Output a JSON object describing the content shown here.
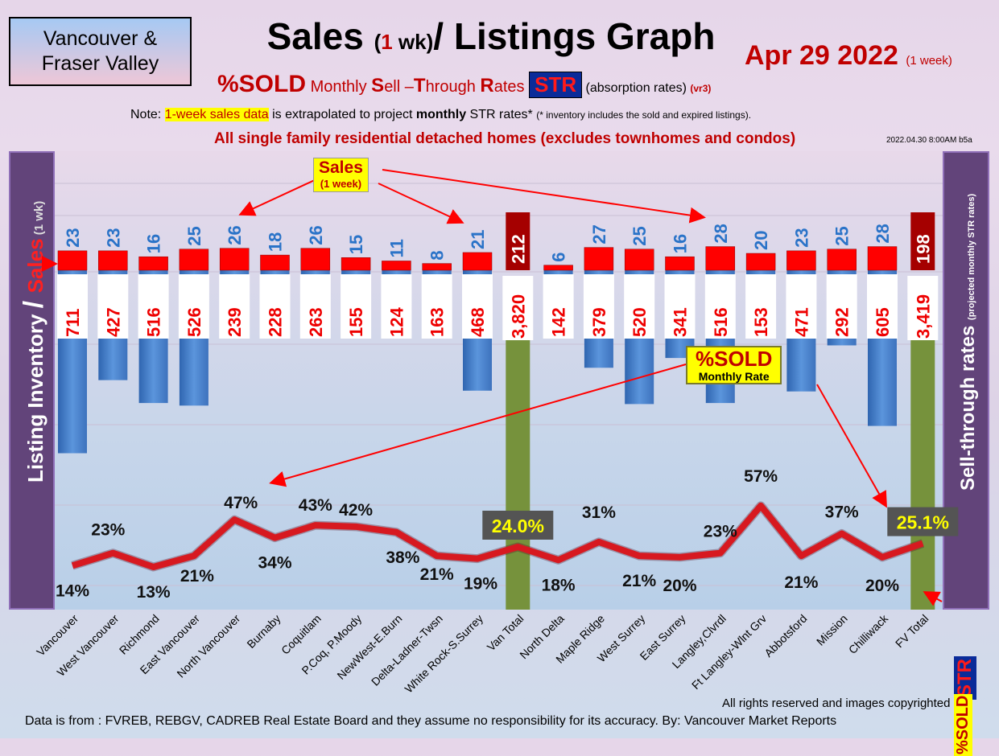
{
  "header": {
    "region_line1": "Vancouver &",
    "region_line2": "Fraser Valley",
    "title_a": "Sales ",
    "title_paren_open": "(",
    "title_one": "1",
    "title_paren_rest": " wk)",
    "title_b": "/ Listings Graph",
    "date": "Apr 29  2022",
    "date_note": "(1 week)",
    "sub_sold": "%SOLD",
    "sub_m1": " Monthly ",
    "sub_S": "S",
    "sub_ell": "ell –",
    "sub_T": "T",
    "sub_hrough": "hrough ",
    "sub_R": "R",
    "sub_ates": "ates ",
    "sub_str": "STR",
    "sub_abs": " (absorption rates) ",
    "sub_ver": "(vr3)",
    "note_pre": "Note: ",
    "note_hl": "1-week sales data",
    "note_mid": " is extrapolated to project ",
    "note_monthly": "monthly",
    "note_post": " STR rates* ",
    "note_tiny": "(* inventory includes the sold and expired listings).",
    "detached": "All single family residential detached homes (excludes townhomes and condos)",
    "stamp": "2022.04.30 8:00AM b5a"
  },
  "side": {
    "left_a": "Listing Inventory ",
    "left_slash": "/ ",
    "left_sales": "Sales",
    "left_wk": " (1 wk)",
    "right_main": "Sell-through rates ",
    "right_sub": "(projected monthly STR rates)",
    "right_str": "STR",
    "right_sold": "%SOLD"
  },
  "callouts": {
    "sales_l1": "Sales",
    "sales_l2": "(1 week)",
    "sold_l1": "%SOLD",
    "sold_l2": "Monthly Rate"
  },
  "footer": {
    "rights": "All rights reserved and  images copyrighted",
    "source": "Data is from : FVREB, REBGV, CADREB Real Estate Board and they assume no responsibility for its accuracy. By: Vancouver Market Reports"
  },
  "colors": {
    "inventory_bar": "#4a86d4",
    "sales_bar": "#ff0000",
    "total_bar": "#76923c",
    "total_sales_bar": "#a50000",
    "line": "#d71920",
    "total_label_box": "#545454",
    "total_label_text": "#ffff00"
  },
  "chart_data": {
    "type": "bar",
    "categories": [
      "Vancouver",
      "West Vancouver",
      "Richmond",
      "East Vancouver",
      "North Vancouver",
      "Burnaby",
      "Coquitlam",
      "P.Coq, P.Moody",
      "NewWest-E.Burn",
      "Delta-Ladner-Twsn",
      "White Rock-S.Surrey",
      "Van Total",
      "North Delta",
      "Maple Ridge",
      "West Surrey",
      "East Surrey",
      "Langley,Clvrdl",
      "Ft Langley-Wlnt Grv",
      "Abbotsford",
      "Mission",
      "Chilliwack",
      "FV Total"
    ],
    "series": [
      {
        "values": [
          711,
          427,
          516,
          526,
          239,
          228,
          263,
          155,
          124,
          163,
          468,
          3820,
          142,
          379,
          520,
          341,
          516,
          153,
          471,
          292,
          605,
          3419
        ]
      },
      {
        "values": [
          23,
          23,
          16,
          25,
          26,
          18,
          26,
          15,
          11,
          8,
          21,
          212,
          6,
          27,
          25,
          16,
          28,
          20,
          23,
          25,
          28,
          198
        ]
      },
      {
        "values": [
          14,
          23,
          13,
          21,
          47,
          34,
          43,
          42,
          38,
          21,
          19,
          24.0,
          18,
          31,
          21,
          20,
          23,
          57,
          21,
          37,
          20,
          25.1
        ]
      }
    ],
    "inventory_labels": [
      "711",
      "427",
      "516",
      "526",
      "239",
      "228",
      "263",
      "155",
      "124",
      "163",
      "468",
      "3,820",
      "142",
      "379",
      "520",
      "341",
      "516",
      "153",
      "471",
      "292",
      "605",
      "3,419"
    ],
    "sales_labels": [
      "23",
      "23",
      "16",
      "25",
      "26",
      "18",
      "26",
      "15",
      "11",
      "8",
      "21",
      "212",
      "6",
      "27",
      "25",
      "16",
      "28",
      "20",
      "23",
      "25",
      "28",
      "198"
    ],
    "sold_labels": [
      "14%",
      "23%",
      "13%",
      "21%",
      "47%",
      "34%",
      "43%",
      "42%",
      "38%",
      "21%",
      "19%",
      "24.0%",
      "18%",
      "31%",
      "21%",
      "20%",
      "23%",
      "57%",
      "21%",
      "37%",
      "20%",
      "25.1%"
    ],
    "total_indices": [
      11,
      21
    ],
    "ylabel": "Listing Inventory / Sales (1 wk)",
    "y2label": "Sell-through rates (projected monthly STR rates)"
  }
}
